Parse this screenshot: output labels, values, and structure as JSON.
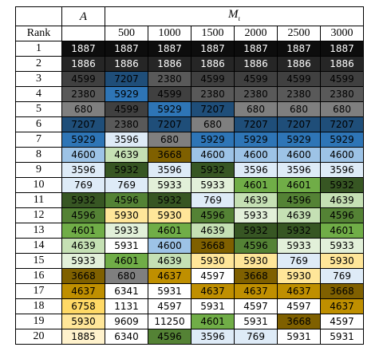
{
  "header": {
    "a_label": "A",
    "m_label": "M",
    "m_sub": "ι",
    "rank_label": "Rank",
    "columns": [
      "500",
      "1000",
      "1500",
      "2000",
      "2500",
      "3000"
    ]
  },
  "rows": [
    {
      "rank": "1",
      "cells": [
        "1887",
        "1887",
        "1887",
        "1887",
        "1887",
        "1887",
        "1887"
      ]
    },
    {
      "rank": "2",
      "cells": [
        "1886",
        "1886",
        "1886",
        "1886",
        "1886",
        "1886",
        "1886"
      ]
    },
    {
      "rank": "3",
      "cells": [
        "4599",
        "7207",
        "2380",
        "4599",
        "4599",
        "4599",
        "4599"
      ]
    },
    {
      "rank": "4",
      "cells": [
        "2380",
        "5929",
        "4599",
        "2380",
        "2380",
        "2380",
        "2380"
      ]
    },
    {
      "rank": "5",
      "cells": [
        "680",
        "4599",
        "5929",
        "7207",
        "680",
        "680",
        "680"
      ]
    },
    {
      "rank": "6",
      "cells": [
        "7207",
        "2380",
        "7207",
        "680",
        "7207",
        "7207",
        "7207"
      ]
    },
    {
      "rank": "7",
      "cells": [
        "5929",
        "3596",
        "680",
        "5929",
        "5929",
        "5929",
        "5929"
      ]
    },
    {
      "rank": "8",
      "cells": [
        "4600",
        "4639",
        "3668",
        "4600",
        "4600",
        "4600",
        "4600"
      ]
    },
    {
      "rank": "9",
      "cells": [
        "3596",
        "5932",
        "3596",
        "5932",
        "3596",
        "3596",
        "3596"
      ]
    },
    {
      "rank": "10",
      "cells": [
        "769",
        "769",
        "5933",
        "5933",
        "4601",
        "4601",
        "5932"
      ]
    },
    {
      "rank": "11",
      "cells": [
        "5932",
        "4596",
        "5932",
        "769",
        "4639",
        "4596",
        "4639"
      ]
    },
    {
      "rank": "12",
      "cells": [
        "4596",
        "5930",
        "5930",
        "4596",
        "5933",
        "4639",
        "4596"
      ]
    },
    {
      "rank": "13",
      "cells": [
        "4601",
        "5933",
        "4601",
        "4639",
        "5932",
        "5932",
        "4601"
      ]
    },
    {
      "rank": "14",
      "cells": [
        "4639",
        "5931",
        "4600",
        "3668",
        "4596",
        "5933",
        "5933"
      ]
    },
    {
      "rank": "15",
      "cells": [
        "5933",
        "4601",
        "4639",
        "5930",
        "5930",
        "769",
        "5930"
      ]
    },
    {
      "rank": "16",
      "cells": [
        "3668",
        "680",
        "4637",
        "4597",
        "3668",
        "5930",
        "769"
      ]
    },
    {
      "rank": "17",
      "cells": [
        "4637",
        "6341",
        "5931",
        "4637",
        "4637",
        "4637",
        "3668"
      ]
    },
    {
      "rank": "18",
      "cells": [
        "6758",
        "1131",
        "4597",
        "5931",
        "4597",
        "4597",
        "4637"
      ]
    },
    {
      "rank": "19",
      "cells": [
        "5930",
        "9609",
        "11250",
        "4601",
        "5931",
        "3668",
        "4597"
      ]
    },
    {
      "rank": "20",
      "cells": [
        "1885",
        "6340",
        "4596",
        "3596",
        "769",
        "5931",
        "5931"
      ]
    }
  ],
  "colors": {
    "1887": "#0d0d0d",
    "1886": "#262626",
    "4599": "#404040",
    "2380": "#595959",
    "680": "#7f7f7f",
    "7207": "#1f4e79",
    "5929": "#2e75b6",
    "4600": "#9dc3e6",
    "3596": "#deebf7",
    "769": "#deebf7",
    "5932": "#375623",
    "4639": "#c5e0b4",
    "5933": "#e2f0d9",
    "4601": "#70ad47",
    "4596": "#548235",
    "5930": "#ffe699",
    "3668": "#7f6000",
    "4637": "#bf8f00",
    "6758": "#ffd966",
    "1885": "#fff2cc"
  },
  "light_text": [
    "1887",
    "1886"
  ]
}
